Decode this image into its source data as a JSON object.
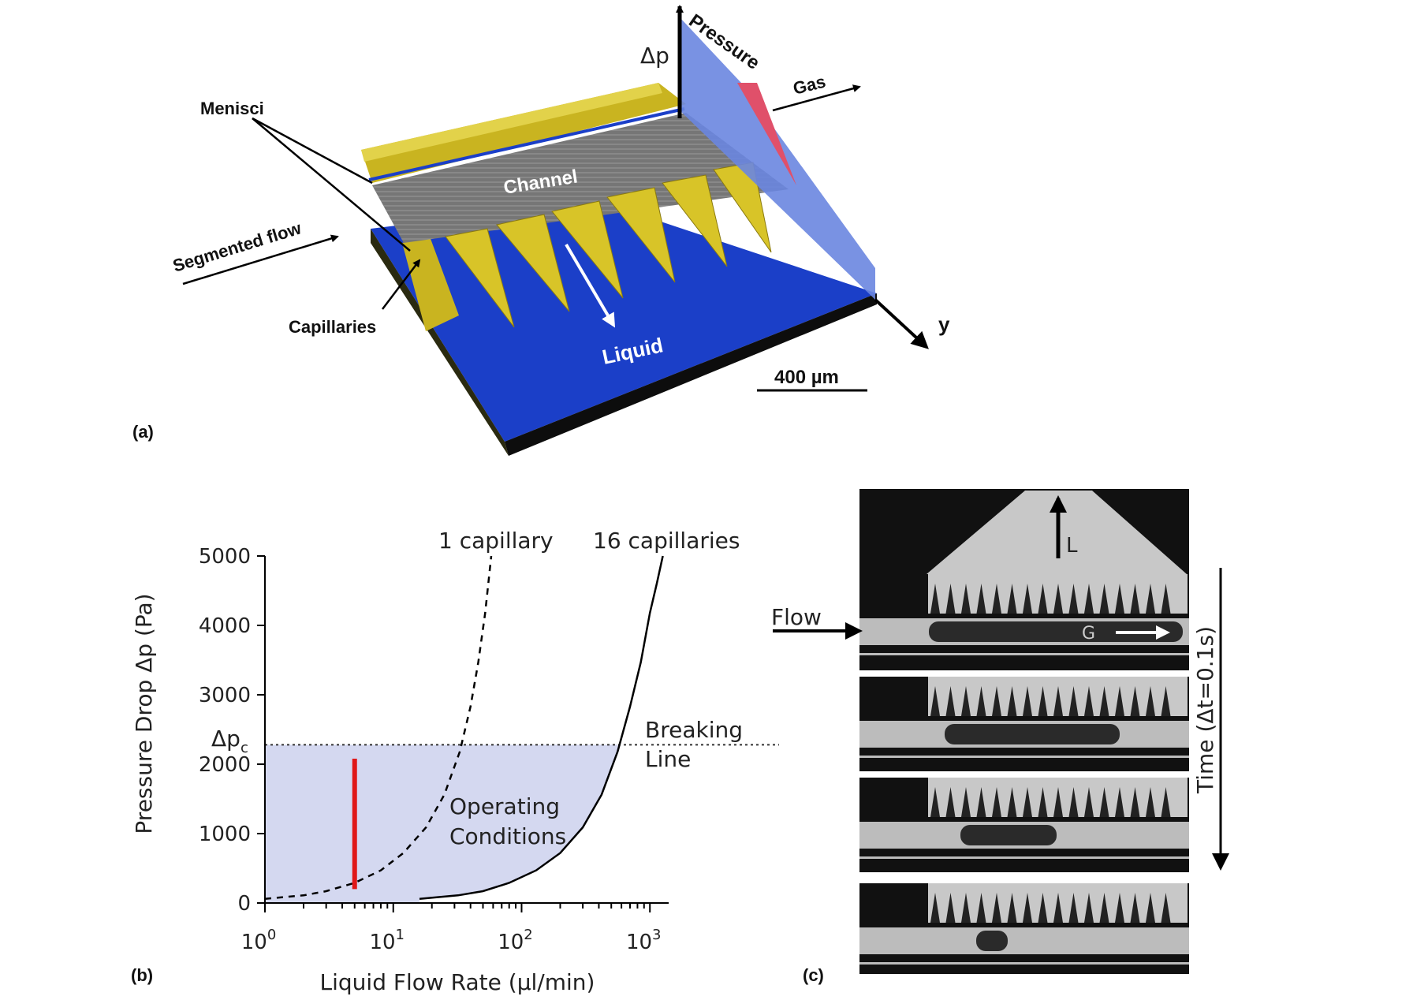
{
  "panel_a": {
    "letter": "(a)",
    "menisci": "Menisci",
    "segmented_flow": "Segmented flow",
    "capillaries": "Capillaries",
    "channel": "Channel",
    "liquid": "Liquid",
    "pressure": "Pressure",
    "gas": "Gas",
    "delta_p": "Δp",
    "y_axis": "y",
    "scale_bar": "400 µm",
    "colors": {
      "substrate": "#1b3fc8",
      "gold": "#c9b420",
      "channel": "#7a7a7a",
      "pressure_plane": "#6a86e0",
      "gas_pressure": "#e0506a"
    }
  },
  "panel_b": {
    "letter": "(b)",
    "dp_c_label": "Δp",
    "dp_c_sub": "c",
    "breaking_line_1": "Breaking",
    "breaking_line_2": "Line",
    "operating_1": "Operating",
    "operating_2": "Conditions",
    "curve_1_label": "1 capillary",
    "curve_16_label": "16 capillaries",
    "y_tick_labels": [
      "0",
      "1000",
      "2000",
      "3000",
      "4000",
      "5000"
    ],
    "x_tick_bases": [
      "10",
      "10",
      "10",
      "10"
    ],
    "x_tick_exps": [
      "0",
      "1",
      "2",
      "3"
    ],
    "colors": {
      "operating_region": "#d4d8f0",
      "operating_line": "#e01818",
      "curve": "#000000"
    }
  },
  "chart_data": {
    "type": "line",
    "xlabel": "Liquid Flow Rate (µl/min)",
    "ylabel": "Pressure Drop Δp (Pa)",
    "xscale": "log",
    "xlim": [
      1,
      1400
    ],
    "ylim": [
      0,
      5000
    ],
    "yticks": [
      0,
      1000,
      2000,
      3000,
      4000,
      5000
    ],
    "xticks": [
      1,
      10,
      100,
      1000
    ],
    "grid": false,
    "breaking_line_dp_c": 2280,
    "operating_flow_rate": 5,
    "operating_dp_range": [
      200,
      2080
    ],
    "series": [
      {
        "name": "1 capillary",
        "style": "dashed",
        "x": [
          1.0,
          2.0,
          3.0,
          5.0,
          8.0,
          12.0,
          18.0,
          25.0,
          33.0,
          40.0,
          46.0,
          52.0,
          58.0
        ],
        "y": [
          60,
          110,
          170,
          290,
          470,
          720,
          1090,
          1560,
          2180,
          2830,
          3470,
          4180,
          5000
        ]
      },
      {
        "name": "16 capillaries",
        "style": "solid",
        "x": [
          16,
          32,
          50,
          80,
          130,
          200,
          300,
          420,
          560,
          700,
          850,
          1000,
          1130,
          1260
        ],
        "y": [
          60,
          110,
          170,
          290,
          470,
          720,
          1090,
          1560,
          2180,
          2830,
          3470,
          4180,
          4600,
          5000
        ]
      }
    ]
  },
  "panel_c": {
    "letter": "(c)",
    "flow": "Flow",
    "L": "L",
    "G": "G",
    "time": "Time (Δt=0.1s)"
  }
}
